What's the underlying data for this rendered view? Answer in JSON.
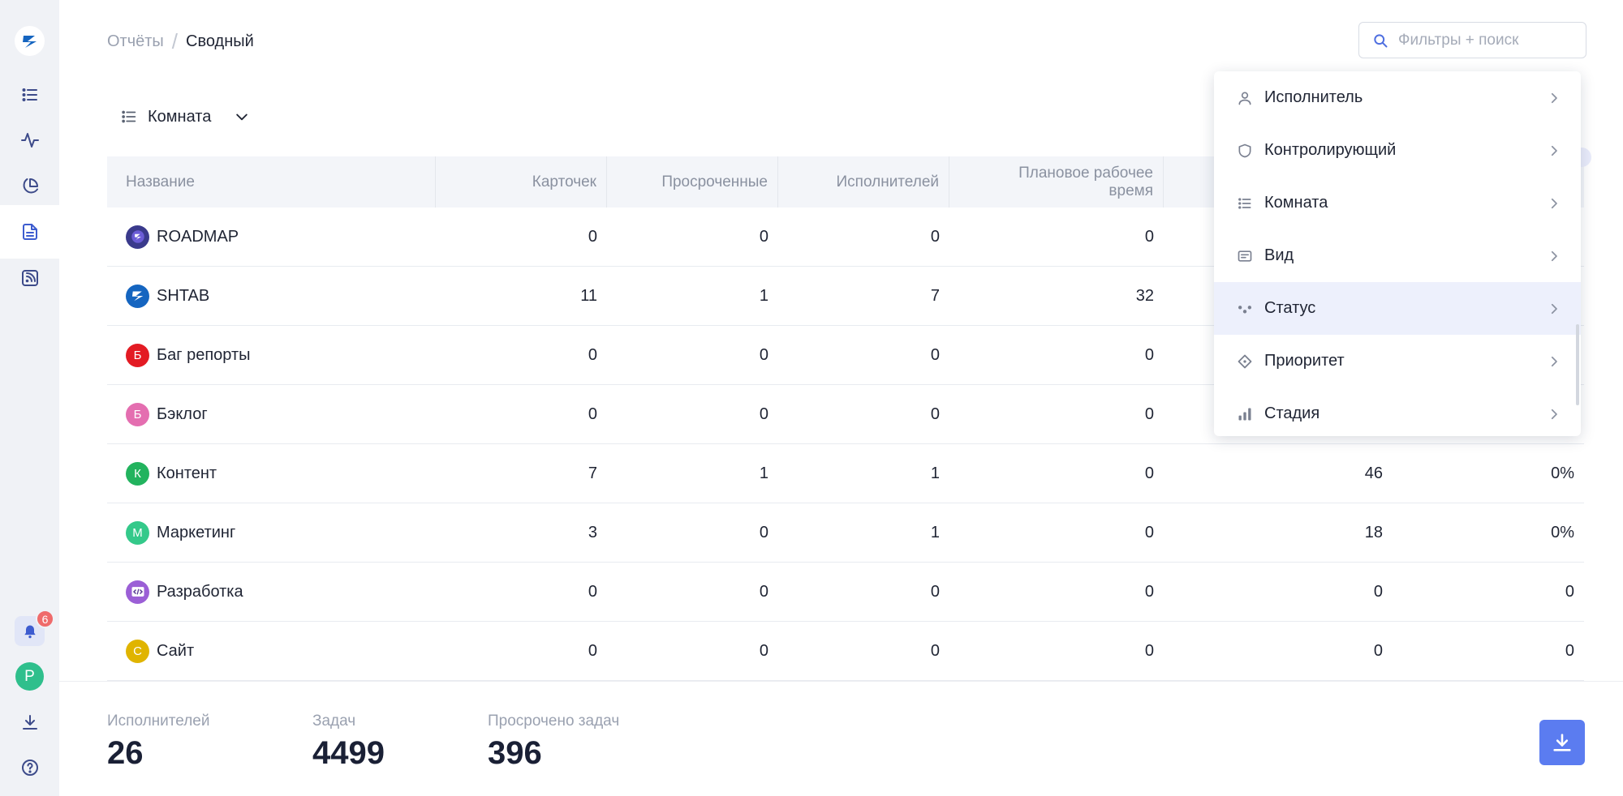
{
  "breadcrumb": {
    "root": "Отчёты",
    "separator": "/",
    "current": "Сводный"
  },
  "search": {
    "placeholder": "Фильтры + поиск",
    "value": ""
  },
  "groupby": {
    "label": "Комната"
  },
  "table": {
    "columns": [
      "Название",
      "Карточек",
      "Просроченные",
      "Исполнителей",
      "Плановое рабочее\nвремя",
      "",
      ""
    ],
    "rows": [
      {
        "name": "ROADMAP",
        "icon": "roadmap-logo",
        "color": "#3a3a8c",
        "letter": "",
        "values": [
          "0",
          "0",
          "0",
          "0",
          "",
          ""
        ]
      },
      {
        "name": "SHTAB",
        "icon": "shtab-logo",
        "color": "#1565c0",
        "letter": "",
        "values": [
          "11",
          "1",
          "7",
          "32",
          "",
          ""
        ]
      },
      {
        "name": "Баг репорты",
        "icon": "letter-avatar",
        "color": "#e31b23",
        "letter": "Б",
        "values": [
          "0",
          "0",
          "0",
          "0",
          "",
          ""
        ]
      },
      {
        "name": "Бэклог",
        "icon": "letter-avatar",
        "color": "#e46eb0",
        "letter": "Б",
        "values": [
          "0",
          "0",
          "0",
          "0",
          "",
          ""
        ]
      },
      {
        "name": "Контент",
        "icon": "letter-avatar",
        "color": "#22b35e",
        "letter": "К",
        "values": [
          "7",
          "1",
          "1",
          "0",
          "46",
          "0%"
        ]
      },
      {
        "name": "Маркетинг",
        "icon": "letter-avatar",
        "color": "#34c98a",
        "letter": "М",
        "values": [
          "3",
          "0",
          "1",
          "0",
          "18",
          "0%"
        ]
      },
      {
        "name": "Разработка",
        "icon": "code-logo",
        "color": "#9b5fd6",
        "letter": "",
        "values": [
          "0",
          "0",
          "0",
          "0",
          "0",
          "0"
        ]
      },
      {
        "name": "Сайт",
        "icon": "letter-avatar",
        "color": "#e0b400",
        "letter": "С",
        "values": [
          "0",
          "0",
          "0",
          "0",
          "0",
          "0"
        ]
      }
    ]
  },
  "footer": {
    "stats": [
      {
        "label": "Исполнителей",
        "value": "26"
      },
      {
        "label": "Задач",
        "value": "4499"
      },
      {
        "label": "Просрочено задач",
        "value": "396"
      }
    ]
  },
  "menu": {
    "items": [
      {
        "label": "Исполнитель",
        "icon": "person-icon",
        "active": false
      },
      {
        "label": "Контролирующий",
        "icon": "shield-icon",
        "active": false
      },
      {
        "label": "Комната",
        "icon": "list-icon",
        "active": false
      },
      {
        "label": "Вид",
        "icon": "view-icon",
        "active": false
      },
      {
        "label": "Статус",
        "icon": "status-dots-icon",
        "active": true
      },
      {
        "label": "Приоритет",
        "icon": "priority-diamond-icon",
        "active": false
      },
      {
        "label": "Стадия",
        "icon": "stage-bars-icon",
        "active": false
      }
    ]
  },
  "rail": {
    "notifications_count": "6",
    "user_initial": "P"
  },
  "colors": {
    "accent": "#5b7cf0",
    "active_menu": "#edf0fc",
    "rail_bg": "#f0f2f6"
  }
}
